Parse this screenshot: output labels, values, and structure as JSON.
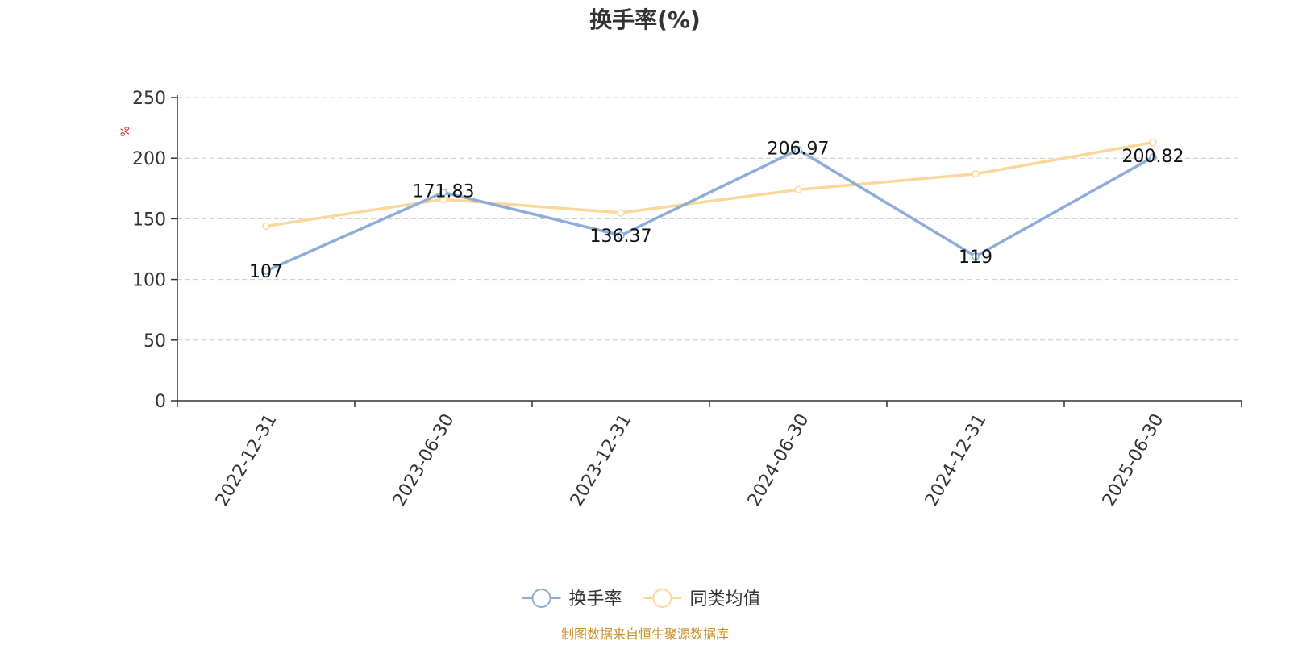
{
  "chart_data": {
    "type": "line",
    "title": "换手率(%)",
    "ylabel": "%",
    "xlabel": "",
    "categories": [
      "2022-12-31",
      "2023-06-30",
      "2023-12-31",
      "2024-06-30",
      "2024-12-31",
      "2025-06-30"
    ],
    "ylim": [
      0,
      250
    ],
    "yticks": [
      0,
      50,
      100,
      150,
      200,
      250
    ],
    "grid": true,
    "legend_position": "bottom",
    "series": [
      {
        "name": "换手率",
        "values": [
          107,
          171.83,
          136.37,
          206.97,
          119,
          200.82
        ],
        "labels": [
          "107",
          "171.83",
          "136.37",
          "206.97",
          "119",
          "200.82"
        ],
        "color": "#8eacd9"
      },
      {
        "name": "同类均值",
        "values": [
          144,
          166,
          155,
          174,
          187,
          213
        ],
        "color": "#fbd89a"
      }
    ]
  },
  "footer": {
    "source_text": "制图数据来自恒生聚源数据库",
    "source_color": "#c8902a"
  },
  "colors": {
    "axis": "#333333",
    "grid": "#cccccc",
    "unit": "#e02020"
  }
}
